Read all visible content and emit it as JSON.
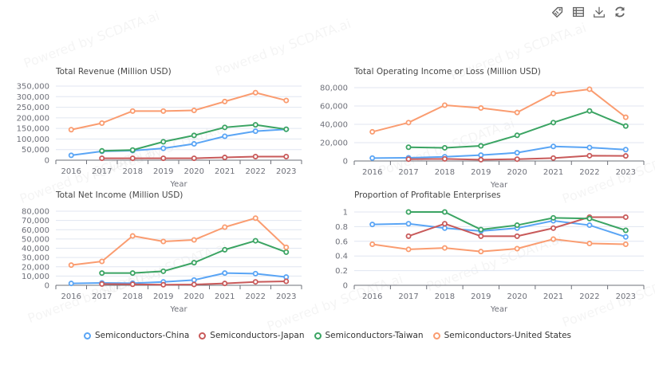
{
  "toolbar": {
    "items": [
      {
        "name": "tag-icon",
        "label": "Toggle data labels"
      },
      {
        "name": "data-view-icon",
        "label": "Data view"
      },
      {
        "name": "download-icon",
        "label": "Save as image"
      },
      {
        "name": "refresh-icon",
        "label": "Restore"
      }
    ]
  },
  "watermark": "Powered by SCDATA.ai",
  "colors": {
    "Semiconductors-China": "#5aa5f5",
    "Semiconductors-Japan": "#c85a5a",
    "Semiconductors-Taiwan": "#3ba463",
    "Semiconductors-United States": "#fa9c70"
  },
  "legend": [
    {
      "name": "Semiconductors-China",
      "color": "#5aa5f5"
    },
    {
      "name": "Semiconductors-Japan",
      "color": "#c85a5a"
    },
    {
      "name": "Semiconductors-Taiwan",
      "color": "#3ba463"
    },
    {
      "name": "Semiconductors-United States",
      "color": "#fa9c70"
    }
  ],
  "chart_data": [
    {
      "type": "line",
      "title": "Total Revenue (Million USD)",
      "xlabel": "Year",
      "ylabel": "",
      "categories": [
        "2016",
        "2017",
        "2018",
        "2019",
        "2020",
        "2021",
        "2022",
        "2023"
      ],
      "ylim": [
        0,
        350000
      ],
      "yticks": [
        "0",
        "50,000",
        "100,000",
        "150,000",
        "200,000",
        "250,000",
        "300,000",
        "350,000"
      ],
      "grid": true,
      "series": [
        {
          "name": "Semiconductors-China",
          "values": [
            23000,
            42000,
            45000,
            56000,
            77000,
            113000,
            137000,
            146000
          ]
        },
        {
          "name": "Semiconductors-Japan",
          "values": [
            null,
            9000,
            9000,
            9000,
            9000,
            13000,
            17000,
            17000
          ]
        },
        {
          "name": "Semiconductors-Taiwan",
          "values": [
            null,
            44000,
            48000,
            87000,
            117000,
            155000,
            167000,
            146000
          ]
        },
        {
          "name": "Semiconductors-United States",
          "values": [
            144000,
            175000,
            232000,
            232000,
            235000,
            277000,
            319000,
            282000
          ]
        }
      ]
    },
    {
      "type": "line",
      "title": "Total Operating Income or Loss (Million USD)",
      "xlabel": "Year",
      "ylabel": "",
      "categories": [
        "2016",
        "2017",
        "2018",
        "2019",
        "2020",
        "2021",
        "2022",
        "2023"
      ],
      "ylim": [
        0,
        80000
      ],
      "yticks": [
        "0",
        "20,000",
        "40,000",
        "60,000",
        "80,000"
      ],
      "grid": true,
      "series": [
        {
          "name": "Semiconductors-China",
          "values": [
            3200,
            3500,
            4600,
            6400,
            9000,
            15900,
            14700,
            12400
          ]
        },
        {
          "name": "Semiconductors-Japan",
          "values": [
            null,
            2000,
            2300,
            1400,
            2000,
            3200,
            5800,
            5500
          ]
        },
        {
          "name": "Semiconductors-Taiwan",
          "values": [
            null,
            15000,
            14400,
            16500,
            28000,
            41900,
            54600,
            38100
          ]
        },
        {
          "name": "Semiconductors-United States",
          "values": [
            31800,
            41900,
            60900,
            57800,
            52900,
            73600,
            78300,
            47700
          ]
        }
      ]
    },
    {
      "type": "line",
      "title": "Total Net Income (Million USD)",
      "xlabel": "Year",
      "ylabel": "",
      "categories": [
        "2016",
        "2017",
        "2018",
        "2019",
        "2020",
        "2021",
        "2022",
        "2023"
      ],
      "ylim": [
        0,
        80000
      ],
      "yticks": [
        "0",
        "10,000",
        "20,000",
        "30,000",
        "40,000",
        "50,000",
        "60,000",
        "70,000",
        "80,000"
      ],
      "grid": true,
      "series": [
        {
          "name": "Semiconductors-China",
          "values": [
            2000,
            2600,
            2300,
            3700,
            5700,
            13200,
            12600,
            8900
          ]
        },
        {
          "name": "Semiconductors-Japan",
          "values": [
            null,
            1400,
            1100,
            600,
            900,
            2000,
            3700,
            4300
          ]
        },
        {
          "name": "Semiconductors-Taiwan",
          "values": [
            null,
            13200,
            13200,
            15200,
            24400,
            38400,
            48100,
            35800
          ]
        },
        {
          "name": "Semiconductors-United States",
          "values": [
            21800,
            25800,
            53300,
            47300,
            49000,
            62800,
            72500,
            41000
          ]
        }
      ]
    },
    {
      "type": "line",
      "title": "Proportion of Profitable Enterprises",
      "xlabel": "Year",
      "ylabel": "",
      "categories": [
        "2016",
        "2017",
        "2018",
        "2019",
        "2020",
        "2021",
        "2022",
        "2023"
      ],
      "ylim": [
        0,
        1
      ],
      "yticks": [
        "0",
        "0.2",
        "0.4",
        "0.6",
        "0.8",
        "1"
      ],
      "grid": true,
      "series": [
        {
          "name": "Semiconductors-China",
          "values": [
            0.83,
            0.84,
            0.78,
            0.74,
            0.78,
            0.88,
            0.82,
            0.66
          ]
        },
        {
          "name": "Semiconductors-Japan",
          "values": [
            null,
            0.67,
            0.84,
            0.67,
            0.67,
            0.78,
            0.93,
            0.93
          ]
        },
        {
          "name": "Semiconductors-Taiwan",
          "values": [
            null,
            1.0,
            1.0,
            0.76,
            0.82,
            0.92,
            0.91,
            0.75
          ]
        },
        {
          "name": "Semiconductors-United States",
          "values": [
            0.56,
            0.49,
            0.51,
            0.46,
            0.5,
            0.63,
            0.57,
            0.56
          ]
        }
      ]
    }
  ]
}
